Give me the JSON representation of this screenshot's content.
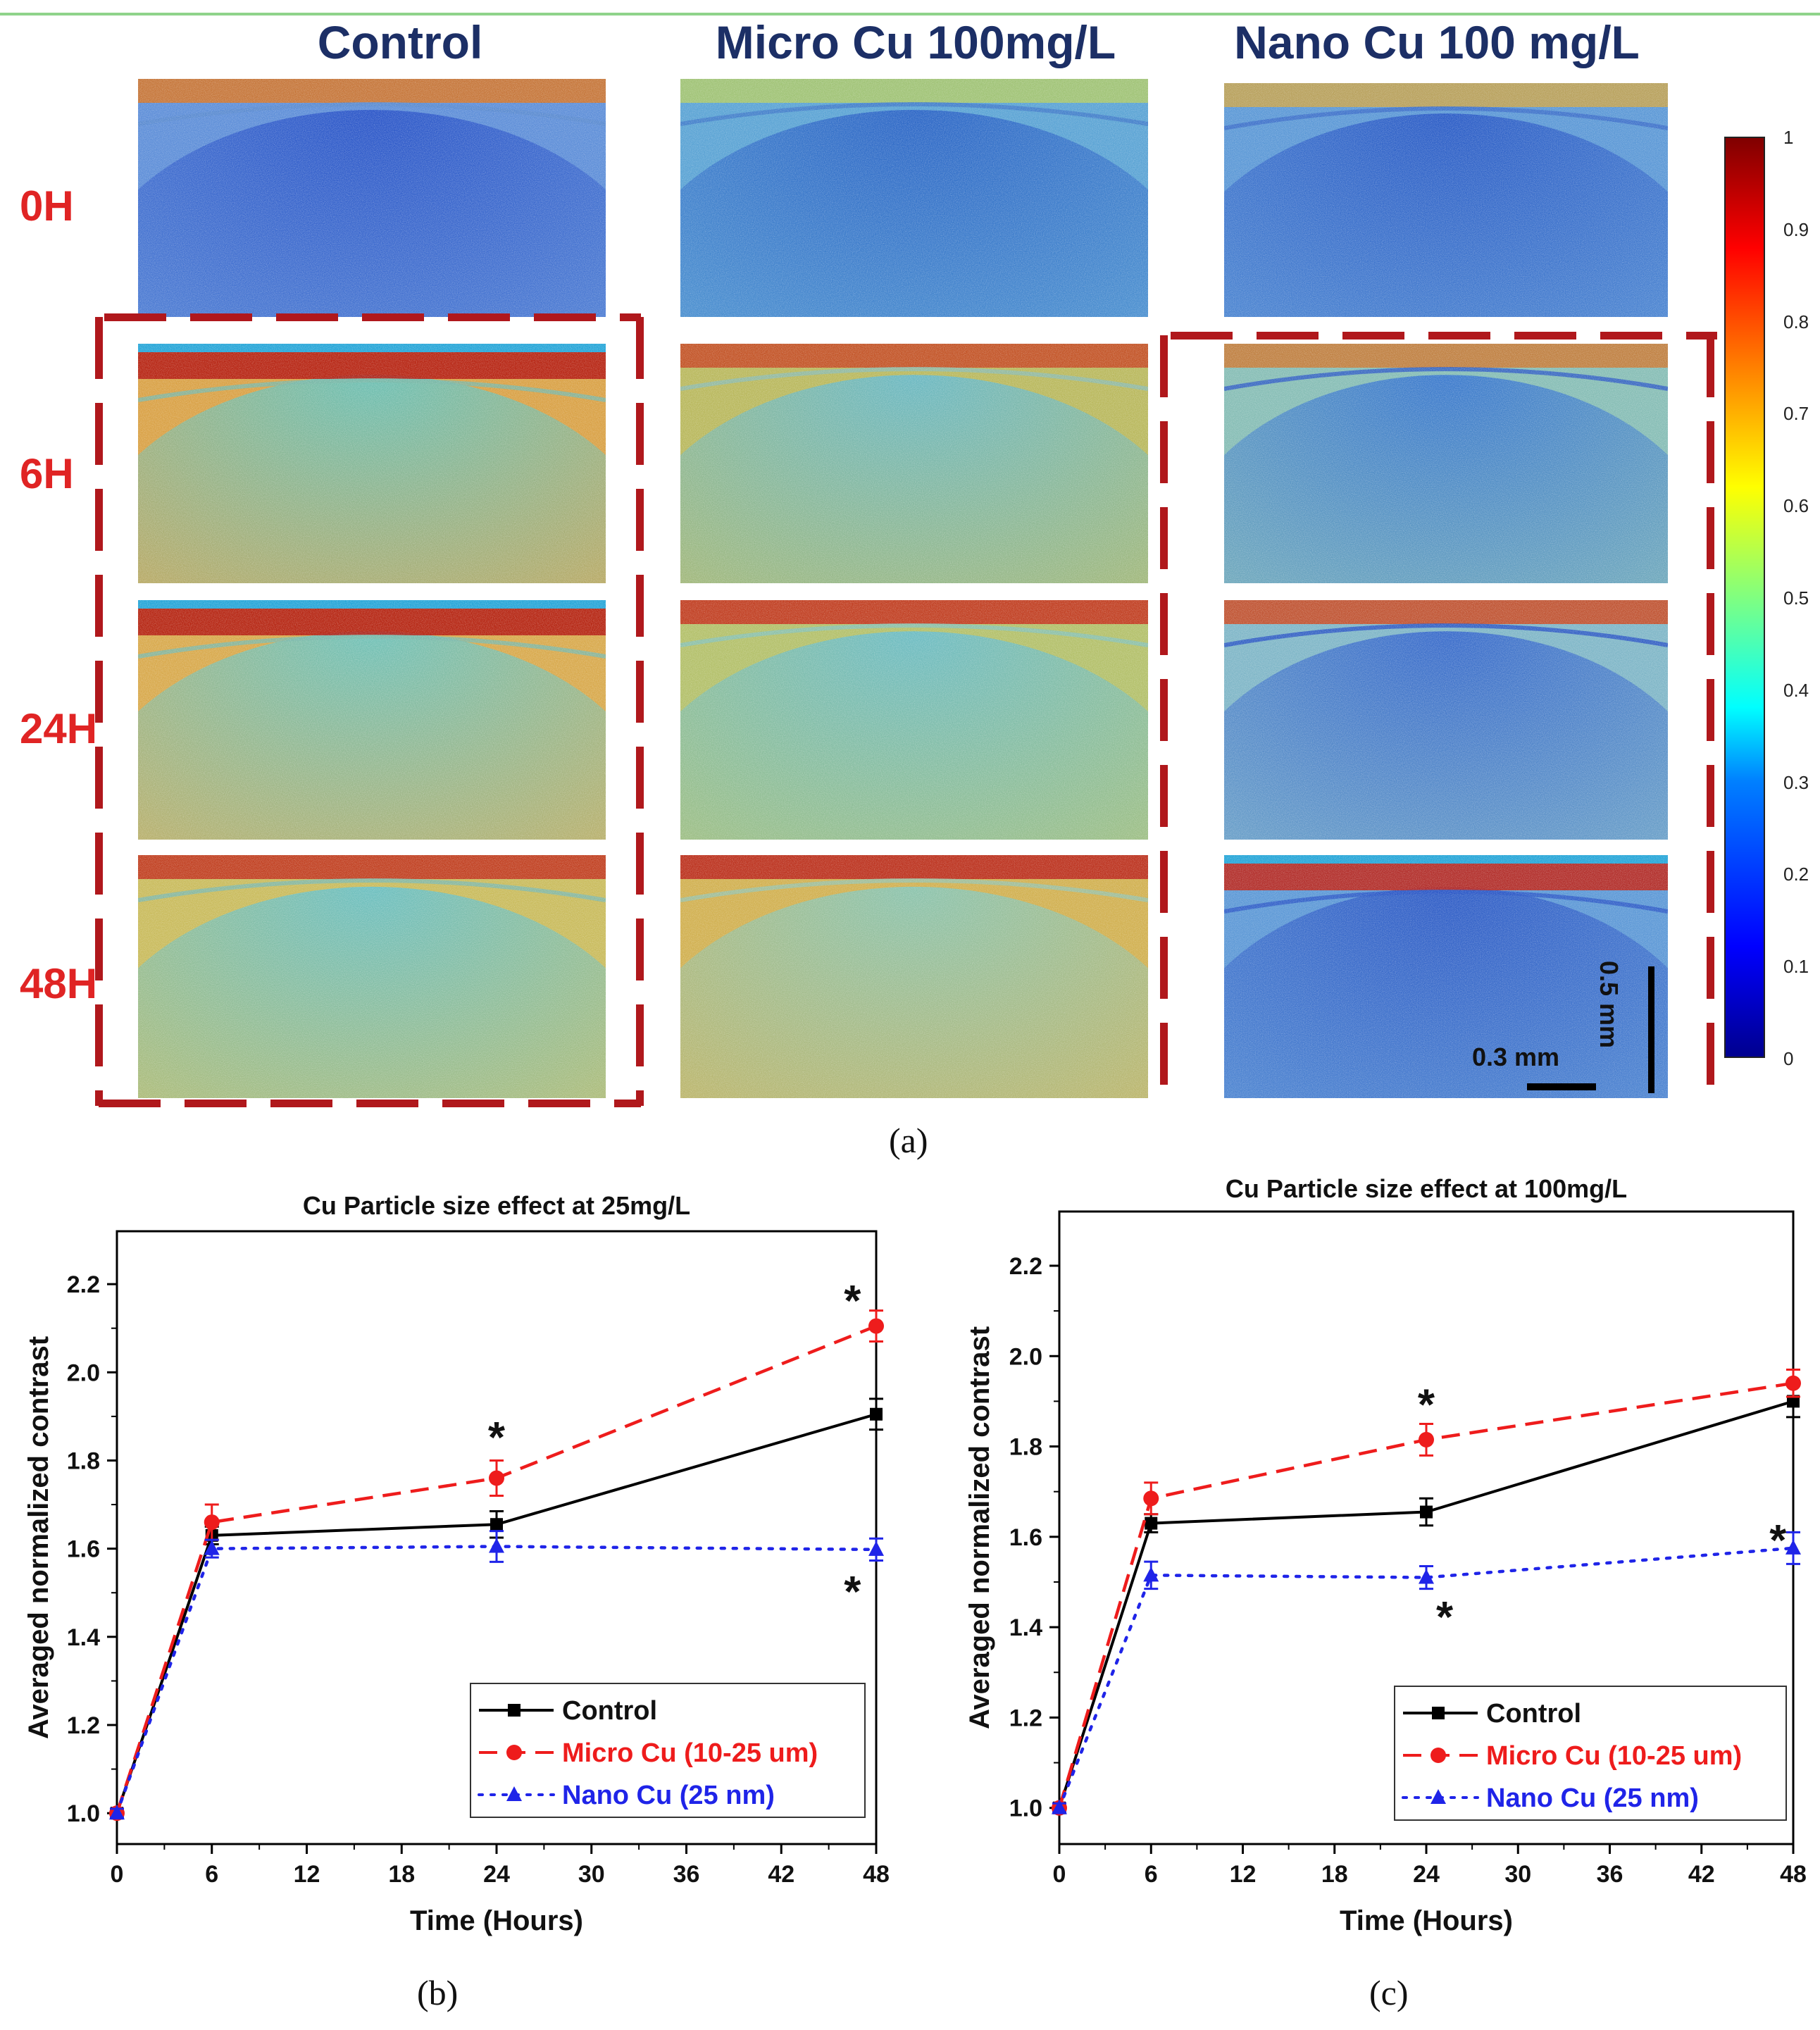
{
  "panel_a": {
    "columns": [
      "Control",
      "Micro Cu 100mg/L",
      "Nano Cu 100 mg/L"
    ],
    "rows": [
      "0H",
      "6H",
      "24H",
      "48H"
    ],
    "colorbar_ticks": [
      "0",
      "0.1",
      "0.2",
      "0.3",
      "0.4",
      "0.5",
      "0.6",
      "0.7",
      "0.8",
      "0.9",
      "1"
    ],
    "scale_vertical": "0.5 mm",
    "scale_horizontal": "0.3 mm",
    "label": "(a)",
    "colors": {
      "column_title": "#1c2f66",
      "row_title": "#e02424",
      "dashed_box": "#b0181c"
    }
  },
  "chart_data": [
    {
      "type": "line",
      "panel": "(b)",
      "title": "Cu Particle size effect at 25mg/L",
      "xlabel": "Time (Hours)",
      "ylabel": "Averaged normalized contrast",
      "xlim": [
        0,
        48
      ],
      "ylim": [
        0.93,
        2.32
      ],
      "xticks": [
        0,
        6,
        12,
        18,
        24,
        30,
        36,
        42,
        48
      ],
      "yticks": [
        1.0,
        1.2,
        1.4,
        1.6,
        1.8,
        2.0,
        2.2
      ],
      "x": [
        0,
        6,
        24,
        48
      ],
      "series": [
        {
          "name": "Control",
          "color": "#000000",
          "style": "solid",
          "marker": "square",
          "values": [
            1.0,
            1.63,
            1.655,
            1.905
          ],
          "errors": [
            0.01,
            0.02,
            0.03,
            0.035
          ]
        },
        {
          "name": "Micro Cu (10-25 um)",
          "color": "#ee1c1c",
          "style": "dashed",
          "marker": "circle",
          "values": [
            1.0,
            1.66,
            1.76,
            2.105
          ],
          "errors": [
            0.01,
            0.04,
            0.04,
            0.035
          ]
        },
        {
          "name": "Nano Cu (25 nm)",
          "color": "#1f24e8",
          "style": "dotted",
          "marker": "triangle",
          "values": [
            1.0,
            1.6,
            1.605,
            1.598
          ],
          "errors": [
            0.01,
            0.02,
            0.035,
            0.025
          ]
        }
      ],
      "annotations": [
        {
          "text": "*",
          "x": 24,
          "y": 1.86
        },
        {
          "text": "*",
          "x": 46.5,
          "y": 2.17
        },
        {
          "text": "*",
          "x": 46.5,
          "y": 1.51
        }
      ],
      "legend": "bottom-right"
    },
    {
      "type": "line",
      "panel": "(c)",
      "title": "Cu Particle size effect at 100mg/L",
      "xlabel": "Time (Hours)",
      "ylabel": "Averaged normalized contrast",
      "xlim": [
        0,
        48
      ],
      "ylim": [
        0.92,
        2.32
      ],
      "xticks": [
        0,
        6,
        12,
        18,
        24,
        30,
        36,
        42,
        48
      ],
      "yticks": [
        1.0,
        1.2,
        1.4,
        1.6,
        1.8,
        2.0,
        2.2
      ],
      "x": [
        0,
        6,
        24,
        48
      ],
      "series": [
        {
          "name": "Control",
          "color": "#000000",
          "style": "solid",
          "marker": "square",
          "values": [
            1.0,
            1.63,
            1.655,
            1.9
          ],
          "errors": [
            0.01,
            0.02,
            0.03,
            0.035
          ]
        },
        {
          "name": "Micro Cu (10-25 um)",
          "color": "#ee1c1c",
          "style": "dashed",
          "marker": "circle",
          "values": [
            1.0,
            1.685,
            1.815,
            1.94
          ],
          "errors": [
            0.01,
            0.035,
            0.035,
            0.03
          ]
        },
        {
          "name": "Nano Cu (25 nm)",
          "color": "#1f24e8",
          "style": "dotted",
          "marker": "triangle",
          "values": [
            1.0,
            1.515,
            1.51,
            1.575
          ],
          "errors": [
            0.01,
            0.03,
            0.025,
            0.035
          ]
        }
      ],
      "annotations": [
        {
          "text": "*",
          "x": 24,
          "y": 1.9
        },
        {
          "text": "*",
          "x": 25.2,
          "y": 1.43
        },
        {
          "text": "*",
          "x": 47,
          "y": 1.6
        }
      ],
      "legend": "bottom-right"
    }
  ]
}
